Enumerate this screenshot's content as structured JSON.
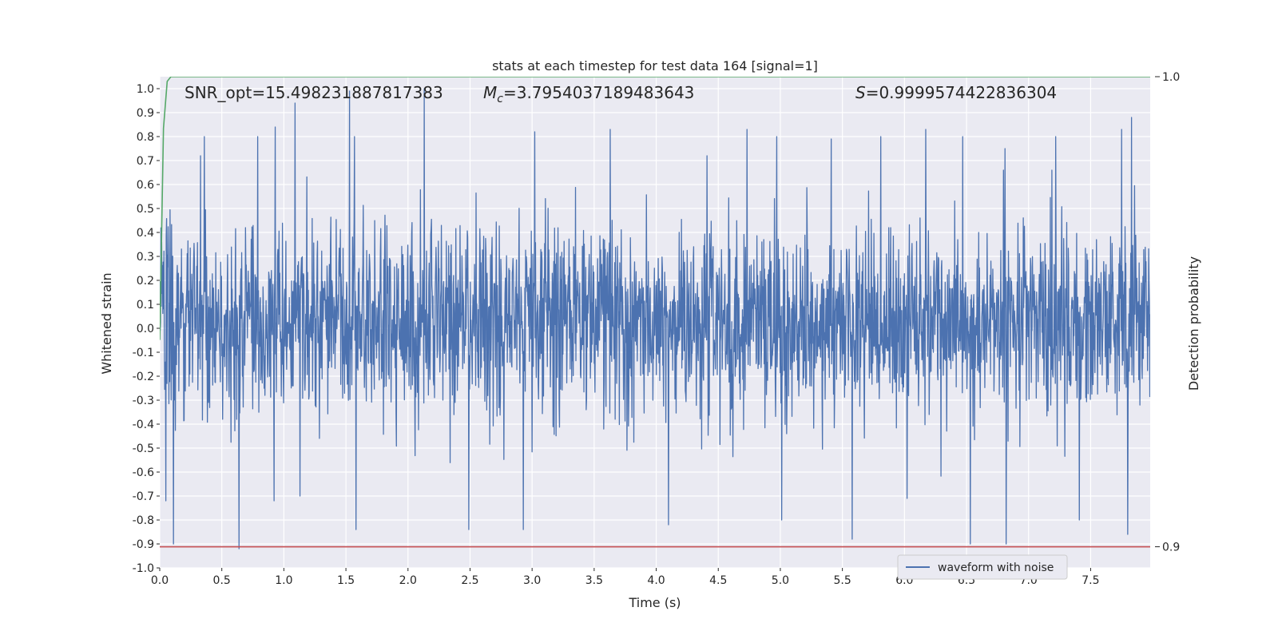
{
  "chart_data": {
    "type": "line",
    "title": "stats at each timestep for test data 164 [signal=1]",
    "xlabel": "Time (s)",
    "ylabel": "Whitened strain",
    "y2label": "Detection probability",
    "xlim": [
      0.0,
      7.98
    ],
    "ylim": [
      -1.0,
      1.05
    ],
    "y2lim": [
      0.8955,
      1.0
    ],
    "x_ticks": [
      "0.0",
      "0.5",
      "1.0",
      "1.5",
      "2.0",
      "2.5",
      "3.0",
      "3.5",
      "4.0",
      "4.5",
      "5.0",
      "5.5",
      "6.0",
      "6.5",
      "7.0",
      "7.5"
    ],
    "y_ticks": [
      "1.0",
      "0.9",
      "0.8",
      "0.7",
      "0.6",
      "0.5",
      "0.4",
      "0.3",
      "0.2",
      "0.1",
      "0.0",
      "-0.1",
      "-0.2",
      "-0.3",
      "-0.4",
      "-0.5",
      "-0.6",
      "-0.7",
      "-0.8",
      "-0.9",
      "-1.0"
    ],
    "y2_ticks": [
      "1.0",
      "0.9"
    ],
    "grid": true,
    "legend_position": "lower-right",
    "annotations": {
      "snr": "SNR_opt=15.498231887817383",
      "mc": "=3.7954037189483643",
      "mc_symbol": "M",
      "mc_sub": "c",
      "s": "=0.9999574422836304",
      "s_symbol": "S"
    },
    "series": [
      {
        "name": "waveform with noise",
        "axis": "left",
        "color": "#4c72b0",
        "kind": "noisy-waveform",
        "x_range": [
          0.0,
          7.98
        ],
        "typical_range": [
          -0.45,
          0.5
        ],
        "peaks_up": [
          [
            0.33,
            0.72
          ],
          [
            0.36,
            0.8
          ],
          [
            0.79,
            0.8
          ],
          [
            0.93,
            0.84
          ],
          [
            1.09,
            0.94
          ],
          [
            1.53,
            0.99
          ],
          [
            1.57,
            0.8
          ],
          [
            2.13,
            1.0
          ],
          [
            2.49,
            0.72
          ],
          [
            2.93,
            1.0
          ],
          [
            3.02,
            0.82
          ],
          [
            3.63,
            0.83
          ],
          [
            4.1,
            0.75
          ],
          [
            4.41,
            0.72
          ],
          [
            4.73,
            0.83
          ],
          [
            4.97,
            0.8
          ],
          [
            5.41,
            0.79
          ],
          [
            5.81,
            0.8
          ],
          [
            6.17,
            0.83
          ],
          [
            6.47,
            0.8
          ],
          [
            6.81,
            0.75
          ],
          [
            7.22,
            0.8
          ],
          [
            7.75,
            0.83
          ],
          [
            7.83,
            0.88
          ]
        ],
        "peaks_down": [
          [
            0.05,
            -0.72
          ],
          [
            0.11,
            -0.9
          ],
          [
            0.64,
            -0.92
          ],
          [
            0.92,
            -0.72
          ],
          [
            1.13,
            -0.7
          ],
          [
            1.58,
            -0.84
          ],
          [
            2.49,
            -0.84
          ],
          [
            2.93,
            -0.84
          ],
          [
            4.1,
            -0.82
          ],
          [
            5.01,
            -0.8
          ],
          [
            5.58,
            -0.88
          ],
          [
            6.02,
            -0.71
          ],
          [
            6.53,
            -0.9
          ],
          [
            6.82,
            -0.9
          ],
          [
            7.41,
            -0.8
          ],
          [
            7.8,
            -0.86
          ]
        ]
      },
      {
        "name": "",
        "axis": "right",
        "color": "#55a868",
        "x": [
          0.0,
          0.03,
          0.06,
          0.09,
          0.12,
          0.2,
          1.0,
          3.0,
          5.0,
          7.98
        ],
        "y": [
          0.944,
          0.989,
          0.999,
          1.0,
          1.0,
          1.0,
          1.0,
          1.0,
          1.0,
          1.0
        ]
      },
      {
        "name": "",
        "axis": "right",
        "color": "#c44e52",
        "x": [
          0.0,
          7.98
        ],
        "y": [
          0.9,
          0.9
        ]
      }
    ]
  }
}
